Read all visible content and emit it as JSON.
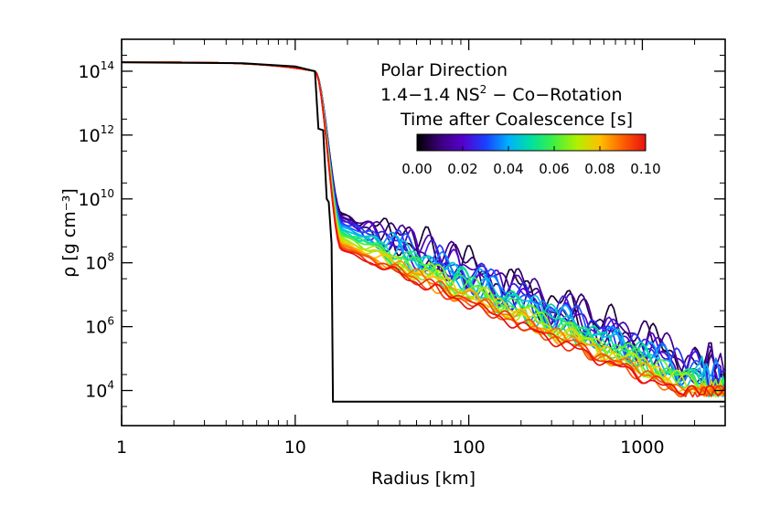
{
  "chart_data": {
    "type": "line",
    "title_lines": [
      "Polar Direction",
      "1.4−1.4 NS",
      "Time after Coalescence [s]"
    ],
    "title_sup": "2",
    "title_suffix": " − Co−Rotation",
    "xlabel": "Radius [km]",
    "ylabel": "ρ [g cm⁻³]",
    "xscale": "log",
    "yscale": "log",
    "xlim": [
      1,
      3000
    ],
    "ylim_log10": [
      2.9,
      15.0
    ],
    "x_ticks": [
      {
        "value": 1,
        "label": "1"
      },
      {
        "value": 10,
        "label": "10"
      },
      {
        "value": 100,
        "label": "100"
      },
      {
        "value": 1000,
        "label": "1000"
      }
    ],
    "y_ticks": [
      {
        "exp": 4,
        "base": "10",
        "sup": "4"
      },
      {
        "exp": 6,
        "base": "10",
        "sup": "6"
      },
      {
        "exp": 8,
        "base": "10",
        "sup": "8"
      },
      {
        "exp": 10,
        "base": "10",
        "sup": "10"
      },
      {
        "exp": 12,
        "base": "10",
        "sup": "12"
      },
      {
        "exp": 14,
        "base": "10",
        "sup": "14"
      }
    ],
    "colorbar": {
      "tick_labels": [
        "0.00",
        "0.02",
        "0.04",
        "0.06",
        "0.08",
        "0.10"
      ],
      "stops": [
        "#000000",
        "#3a007a",
        "#5500cc",
        "#1a40ff",
        "#00b0ff",
        "#00e0a0",
        "#40f040",
        "#b0f000",
        "#ffc000",
        "#ff6000",
        "#e81010"
      ]
    },
    "initial_profile": {
      "time": 0.0,
      "color": "#000000",
      "points": [
        [
          1,
          14.28
        ],
        [
          5,
          14.25
        ],
        [
          10,
          14.15
        ],
        [
          13,
          14.0
        ],
        [
          13.6,
          12.2
        ],
        [
          14.5,
          12.15
        ],
        [
          15.2,
          10.0
        ],
        [
          15.6,
          9.9
        ],
        [
          16.2,
          8.6
        ],
        [
          16.5,
          3.65
        ],
        [
          3000,
          3.65
        ]
      ]
    },
    "evolved_profile_template": {
      "core_log_rho": 14.28,
      "core_edge_radius_km": 13.0,
      "edge_log_rho": 14.0,
      "drop_radius_km": 18.5,
      "shoulder_log_rho_first": 9.6,
      "shoulder_log_rho_last": 8.4,
      "falloff_slope": -2.3,
      "floor_log_rho": 3.65,
      "n_snapshots": 26
    },
    "series_times": [
      0.004,
      0.008,
      0.012,
      0.016,
      0.02,
      0.024,
      0.028,
      0.032,
      0.036,
      0.04,
      0.044,
      0.048,
      0.052,
      0.056,
      0.06,
      0.064,
      0.068,
      0.072,
      0.076,
      0.08,
      0.084,
      0.088,
      0.092,
      0.096,
      0.1
    ]
  }
}
